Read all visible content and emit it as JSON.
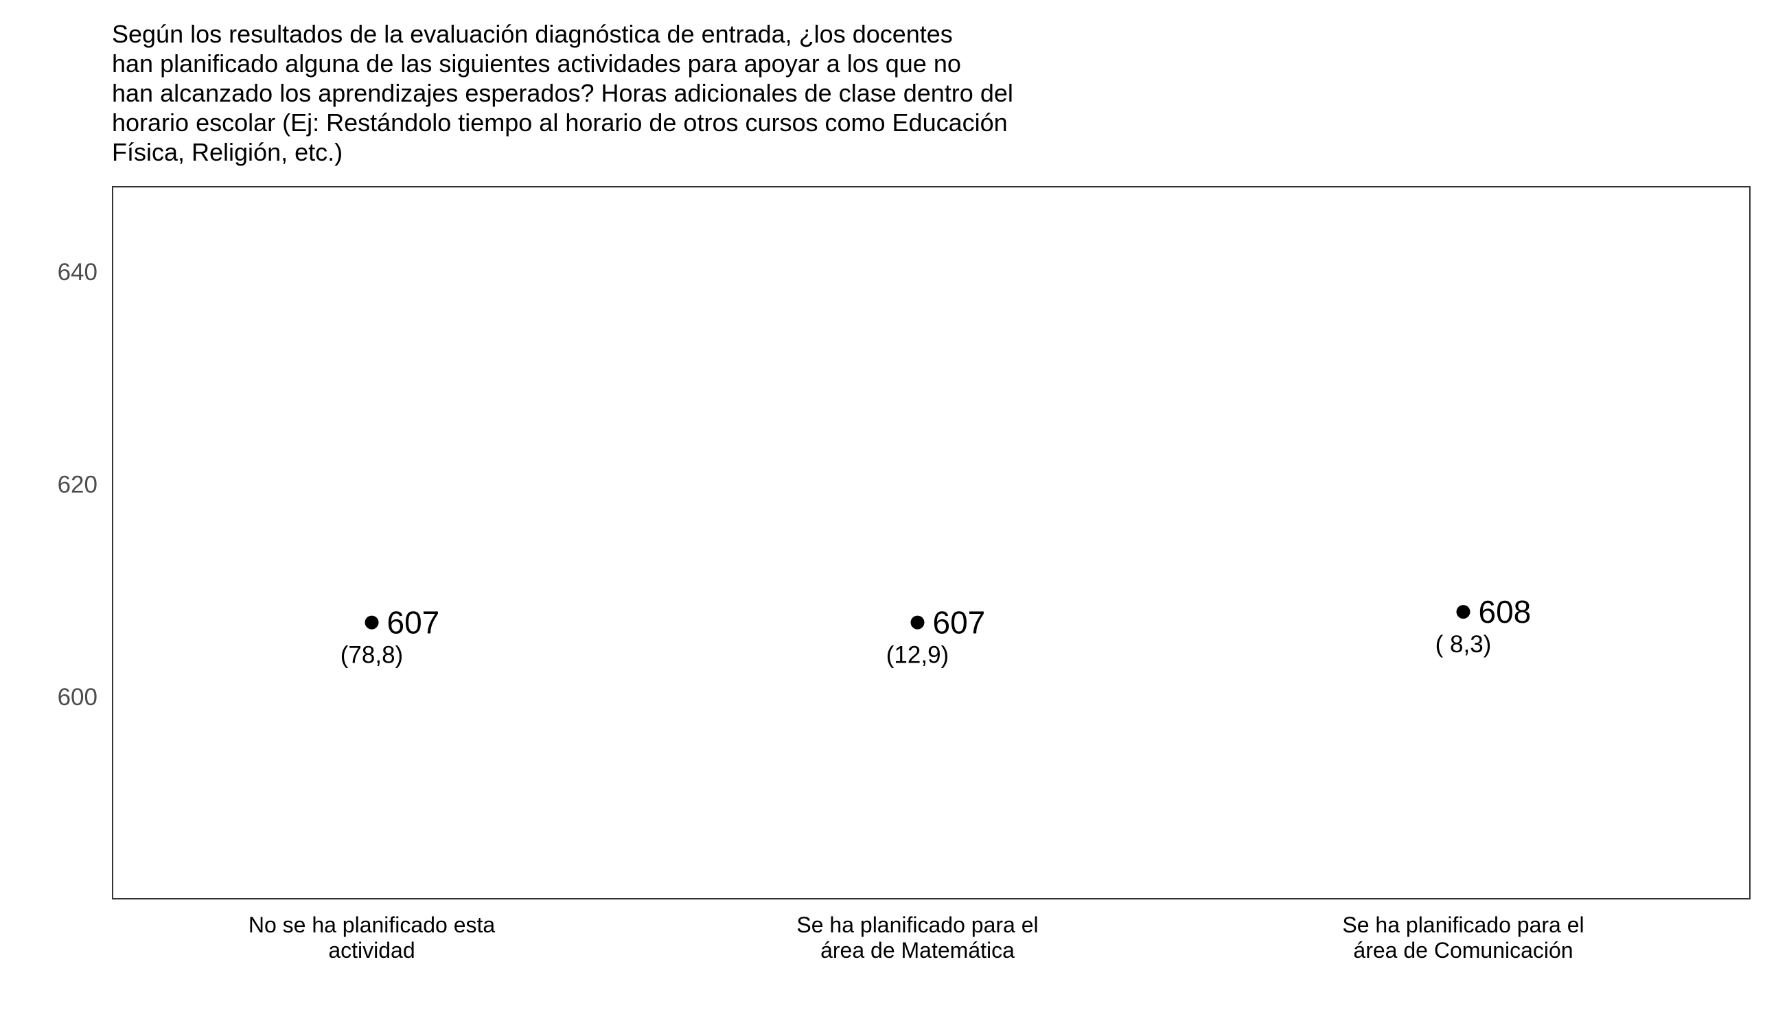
{
  "chart_data": {
    "type": "scatter",
    "title": "Según los resultados de la evaluación diagnóstica de entrada, ¿los docentes\nhan planificado alguna de las siguientes actividades para apoyar a los que no\nhan alcanzado los aprendizajes esperados? Horas adicionales de clase dentro del\nhorario escolar (Ej: Restándolo tiempo al horario de otros cursos como Educación\nFísica, Religión, etc.)",
    "xlabel": "",
    "ylabel": "",
    "categories": [
      [
        "No se ha planificado esta",
        "actividad"
      ],
      [
        "Se ha planificado para el",
        "área de Matemática"
      ],
      [
        "Se ha planificado para el",
        "área de Comunicación"
      ]
    ],
    "values": [
      607,
      607,
      608
    ],
    "value_labels": [
      "607",
      "607",
      "608"
    ],
    "percent_labels": [
      "(78,8)",
      "(12,9)",
      "( 8,3)"
    ],
    "ylim": [
      581,
      648
    ],
    "yticks": [
      600,
      620,
      640
    ],
    "ytick_labels": [
      "600",
      "620",
      "640"
    ],
    "grid": false,
    "legend": "none",
    "colors": {
      "point": "#000000",
      "frame": "#333333",
      "tick_text": "#4d4d4d"
    }
  }
}
